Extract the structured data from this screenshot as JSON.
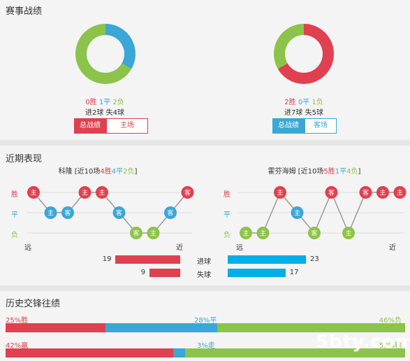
{
  "sections": {
    "record_title": "赛事战绩",
    "recent_title": "近期表现",
    "history_title": "历史交锋往绩"
  },
  "colors": {
    "red": "#e0404f",
    "blue": "#3aa7d6",
    "green": "#8cc34a",
    "cyan": "#00aee8"
  },
  "left_team": {
    "donut": {
      "win": 0,
      "draw": 1,
      "loss": 2
    },
    "record_win": "0胜",
    "record_draw": "1平",
    "record_loss": "2负",
    "goals": "进2球",
    "conceded": "失4球",
    "tab_total": "总战绩",
    "tab_venue": "主场",
    "recent_name": "科隆",
    "recent_prefix": " [近10场",
    "recent_w": "4胜",
    "recent_d": "4平",
    "recent_l": "2负",
    "recent_suffix": "]",
    "sequence": [
      "主胜",
      "主平",
      "客平",
      "主胜",
      "主胜",
      "客平",
      "客负",
      "主负",
      "客平",
      "客胜"
    ],
    "far_label": "远",
    "near_label": "近",
    "goals_for": "19",
    "goals_against": "9"
  },
  "right_team": {
    "donut": {
      "win": 2,
      "draw": 0,
      "loss": 1
    },
    "record_win": "2胜",
    "record_draw": "0平",
    "record_loss": "1负",
    "goals": "进7球",
    "conceded": "失5球",
    "tab_total": "总战绩",
    "tab_venue": "客场",
    "recent_name": "霍芬海姆",
    "recent_prefix": " [近10场",
    "recent_w": "5胜",
    "recent_d": "1平",
    "recent_l": "4负",
    "recent_suffix": "]",
    "sequence": [
      "主负",
      "主负",
      "主胜",
      "主平",
      "客负",
      "客胜",
      "主负",
      "客胜",
      "主胜",
      "主胜"
    ],
    "far_label": "远",
    "near_label": "近",
    "goals_for": "23",
    "goals_against": "17"
  },
  "row_labels": {
    "win": "胜",
    "draw": "平",
    "loss": "负"
  },
  "goal_labels": {
    "scored": "进球",
    "conceded": "失球"
  },
  "history": {
    "row1": {
      "win_pct": 25,
      "draw_pct": 28,
      "loss_pct": 46,
      "win_label": "25%胜",
      "draw_label": "28%平",
      "loss_label": "46%负"
    },
    "row2": {
      "win_pct": 42,
      "draw_pct": 3,
      "loss_pct": 53,
      "win_label": "42%赢",
      "draw_label": "3%走",
      "loss_label": "53%输"
    }
  },
  "watermark": "5bty.com"
}
